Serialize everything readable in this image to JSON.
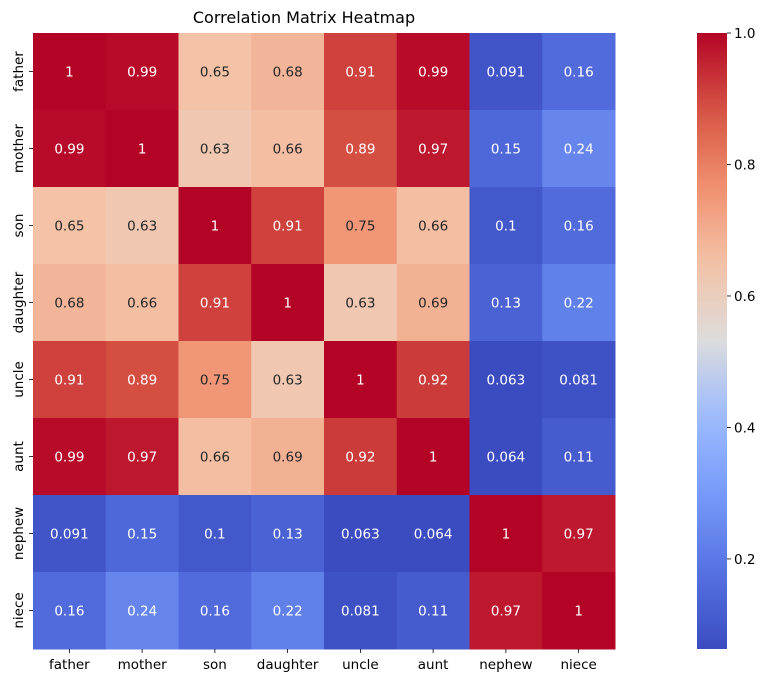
{
  "chart_data": {
    "type": "heatmap",
    "title": "Correlation Matrix Heatmap",
    "xlabel": "",
    "ylabel": "",
    "x_labels": [
      "father",
      "mother",
      "son",
      "daughter",
      "uncle",
      "aunt",
      "nephew",
      "niece"
    ],
    "y_labels": [
      "father",
      "mother",
      "son",
      "daughter",
      "uncle",
      "aunt",
      "nephew",
      "niece"
    ],
    "values": [
      [
        1,
        0.99,
        0.65,
        0.68,
        0.91,
        0.99,
        0.091,
        0.16
      ],
      [
        0.99,
        1,
        0.63,
        0.66,
        0.89,
        0.97,
        0.15,
        0.24
      ],
      [
        0.65,
        0.63,
        1,
        0.91,
        0.75,
        0.66,
        0.1,
        0.16
      ],
      [
        0.68,
        0.66,
        0.91,
        1,
        0.63,
        0.69,
        0.13,
        0.22
      ],
      [
        0.91,
        0.89,
        0.75,
        0.63,
        1,
        0.92,
        0.063,
        0.081
      ],
      [
        0.99,
        0.97,
        0.66,
        0.69,
        0.92,
        1,
        0.064,
        0.11
      ],
      [
        0.091,
        0.15,
        0.1,
        0.13,
        0.063,
        0.064,
        1,
        0.97
      ],
      [
        0.16,
        0.24,
        0.16,
        0.22,
        0.081,
        0.11,
        0.97,
        1
      ]
    ],
    "annotations": [
      [
        "1",
        "0.99",
        "0.65",
        "0.68",
        "0.91",
        "0.99",
        "0.091",
        "0.16"
      ],
      [
        "0.99",
        "1",
        "0.63",
        "0.66",
        "0.89",
        "0.97",
        "0.15",
        "0.24"
      ],
      [
        "0.65",
        "0.63",
        "1",
        "0.91",
        "0.75",
        "0.66",
        "0.1",
        "0.16"
      ],
      [
        "0.68",
        "0.66",
        "0.91",
        "1",
        "0.63",
        "0.69",
        "0.13",
        "0.22"
      ],
      [
        "0.91",
        "0.89",
        "0.75",
        "0.63",
        "1",
        "0.92",
        "0.063",
        "0.081"
      ],
      [
        "0.99",
        "0.97",
        "0.66",
        "0.69",
        "0.92",
        "1",
        "0.064",
        "0.11"
      ],
      [
        "0.091",
        "0.15",
        "0.1",
        "0.13",
        "0.063",
        "0.064",
        "1",
        "0.97"
      ],
      [
        "0.16",
        "0.24",
        "0.16",
        "0.22",
        "0.081",
        "0.11",
        "0.97",
        "1"
      ]
    ],
    "colormap": "coolwarm",
    "colorbar": {
      "range": [
        0.063,
        1.0
      ],
      "ticks": [
        0.2,
        0.4,
        0.6,
        0.8,
        1.0
      ],
      "tick_labels": [
        "0.2",
        "0.4",
        "0.6",
        "0.8",
        "1.0"
      ]
    },
    "grid": false,
    "legend": "right"
  }
}
